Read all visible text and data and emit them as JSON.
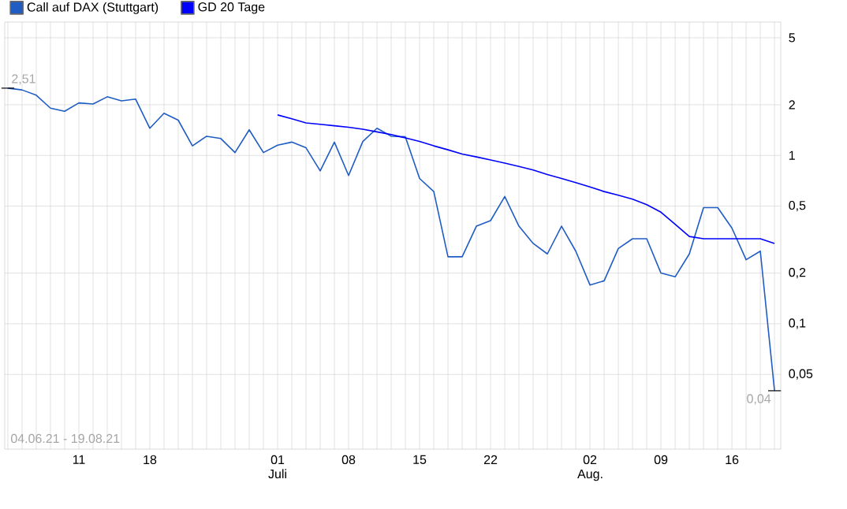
{
  "chart_data": {
    "type": "line",
    "log": "y",
    "grid": true,
    "legend": "top left",
    "marker": "none",
    "line_style": "solid",
    "categories": [
      null,
      null,
      null,
      null,
      null,
      "11",
      null,
      null,
      null,
      null,
      "18",
      null,
      null,
      null,
      null,
      null,
      null,
      null,
      null,
      "01 Juli",
      null,
      null,
      null,
      null,
      "08",
      null,
      null,
      null,
      null,
      "15",
      null,
      null,
      null,
      null,
      "22",
      null,
      null,
      null,
      null,
      null,
      null,
      "02 Aug.",
      null,
      null,
      null,
      null,
      "09",
      null,
      null,
      null,
      null,
      "16",
      null,
      null,
      null
    ],
    "series": [
      {
        "name": "Call auf DAX (Stuttgart)",
        "color": "#1f5cc4",
        "values": [
          2.51,
          2.45,
          2.28,
          1.91,
          1.83,
          2.05,
          2.02,
          2.23,
          2.11,
          2.16,
          1.45,
          1.78,
          1.62,
          1.14,
          1.3,
          1.26,
          1.04,
          1.42,
          1.04,
          1.15,
          1.2,
          1.11,
          0.81,
          1.2,
          0.76,
          1.21,
          1.45,
          1.3,
          1.29,
          0.73,
          0.61,
          0.25,
          0.25,
          0.38,
          0.41,
          0.57,
          0.38,
          0.3,
          0.26,
          0.38,
          0.27,
          0.17,
          0.18,
          0.28,
          0.32,
          0.32,
          0.2,
          0.19,
          0.26,
          0.49,
          0.49,
          0.37,
          0.24,
          0.27,
          0.04
        ],
        "value_labels": [
          "2,51",
          null,
          null,
          null,
          null,
          null,
          null,
          null,
          null,
          null,
          null,
          null,
          null,
          null,
          null,
          null,
          null,
          null,
          null,
          null,
          null,
          null,
          null,
          null,
          null,
          null,
          null,
          null,
          null,
          null,
          null,
          null,
          null,
          null,
          null,
          null,
          null,
          null,
          null,
          null,
          null,
          null,
          null,
          null,
          null,
          null,
          null,
          null,
          null,
          null,
          null,
          null,
          null,
          null,
          "0,04"
        ]
      },
      {
        "name": "GD 20 Tage",
        "color": "#0000ff",
        "values": [
          null,
          null,
          null,
          null,
          null,
          null,
          null,
          null,
          null,
          null,
          null,
          null,
          null,
          null,
          null,
          null,
          null,
          null,
          null,
          1.74,
          1.65,
          1.56,
          1.53,
          1.5,
          1.47,
          1.43,
          1.38,
          1.33,
          1.27,
          1.21,
          1.14,
          1.08,
          1.02,
          0.98,
          0.94,
          0.9,
          0.86,
          0.82,
          0.77,
          0.73,
          0.69,
          0.65,
          0.61,
          0.58,
          0.55,
          0.51,
          0.46,
          0.39,
          0.33,
          0.32,
          0.32,
          0.32,
          0.32,
          0.32,
          0.3
        ]
      }
    ],
    "ylim": [
      0.018,
      6.2
    ],
    "yticks": [
      {
        "value": 0.05,
        "label": "0,05"
      },
      {
        "value": 0.1,
        "label": "0,1"
      },
      {
        "value": 0.2,
        "label": "0,2"
      },
      {
        "value": 0.5,
        "label": "0,5"
      },
      1,
      2,
      5
    ],
    "annotations": [
      "04.06.21 - 19.08.21"
    ]
  }
}
